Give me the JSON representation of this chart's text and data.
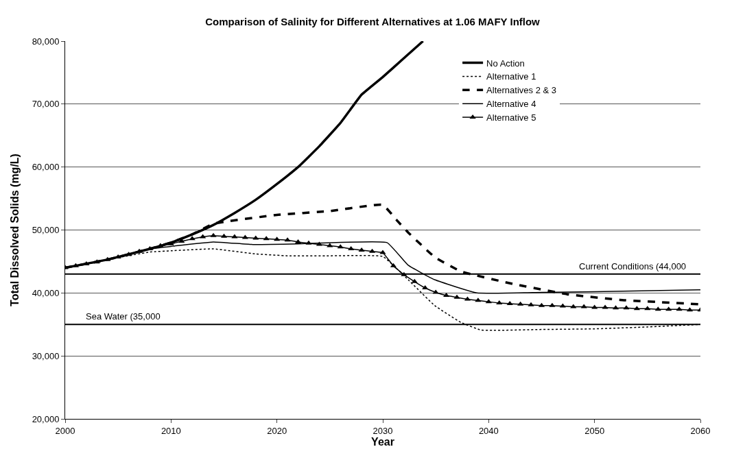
{
  "chart_data": {
    "type": "line",
    "title": "Comparison of Salinity for Different Alternatives at 1.06 MAFY Inflow",
    "xlabel": "Year",
    "ylabel": "Total Dissolved Solids (mg/L)",
    "xlim": [
      2000,
      2060
    ],
    "xticks": [
      2000,
      2010,
      2020,
      2030,
      2040,
      2050,
      2060
    ],
    "ylim": [
      20000,
      80000
    ],
    "yticks": [
      {
        "value": 20000,
        "label": "20,000"
      },
      {
        "value": 30000,
        "label": "30,000"
      },
      {
        "value": 40000,
        "label": "40,000"
      },
      {
        "value": 50000,
        "label": "50,000"
      },
      {
        "value": 60000,
        "label": "60,000"
      },
      {
        "value": 70000,
        "label": "70,000"
      },
      {
        "value": 80000,
        "label": "80,000"
      }
    ],
    "grid": "y",
    "legend": "top right",
    "series": [
      {
        "name": "No Action",
        "color": "#000000",
        "line_style": "solid",
        "marker": "none",
        "x": [
          2000,
          2004,
          2008,
          2010,
          2012,
          2014,
          2016,
          2018,
          2020,
          2022,
          2024,
          2026,
          2028,
          2030,
          2032,
          2033.8
        ],
        "values": [
          44000,
          45300,
          47000,
          48000,
          49300,
          50800,
          52700,
          54800,
          57300,
          60000,
          63300,
          67000,
          71500,
          74300,
          77300,
          80000
        ]
      },
      {
        "name": "Alternative 1",
        "color": "#000000",
        "line_style": "dotted",
        "marker": "none",
        "x": [
          2000,
          2004,
          2008,
          2010,
          2014,
          2018,
          2021,
          2025,
          2030,
          2032.4,
          2034.9,
          2037.4,
          2039.3,
          2045,
          2050,
          2055,
          2060
        ],
        "values": [
          44000,
          45300,
          46500,
          46700,
          47000,
          46200,
          45900,
          45900,
          45800,
          42100,
          38000,
          35300,
          34100,
          34200,
          34300,
          34600,
          35000
        ]
      },
      {
        "name": "Alternatives 2 & 3",
        "color": "#000000",
        "line_style": "dashed",
        "marker": "none",
        "x": [
          2000,
          2004,
          2008,
          2010,
          2012,
          2014,
          2020,
          2025,
          2030,
          2031.3,
          2032.4,
          2034.9,
          2037.4,
          2042.4,
          2047.4,
          2052.4,
          2060
        ],
        "values": [
          44000,
          45300,
          47000,
          48000,
          49300,
          51000,
          52400,
          53000,
          54000,
          51600,
          49600,
          45700,
          43400,
          41400,
          39800,
          38900,
          38200
        ]
      },
      {
        "name": "Alternative 4",
        "color": "#000000",
        "line_style": "solid",
        "marker": "none",
        "x": [
          2000,
          2004,
          2008,
          2010,
          2014,
          2017.6,
          2022,
          2030.4,
          2032.4,
          2034.9,
          2038.9,
          2045,
          2050,
          2060
        ],
        "values": [
          44000,
          45300,
          47000,
          47400,
          48100,
          47700,
          47800,
          48000,
          44400,
          42100,
          40000,
          40100,
          40200,
          40500
        ]
      },
      {
        "name": "Alternative 5",
        "color": "#000000",
        "line_style": "solid",
        "marker": "triangle",
        "x": [
          2000,
          2001,
          2002,
          2003,
          2004,
          2005,
          2006,
          2007,
          2008,
          2009,
          2010,
          2011,
          2012,
          2013,
          2014,
          2015,
          2016,
          2017,
          2018,
          2019,
          2020,
          2021,
          2022,
          2023,
          2024,
          2025,
          2026,
          2027,
          2028,
          2029,
          2030,
          2031,
          2032,
          2033,
          2034,
          2035,
          2036,
          2037,
          2038,
          2039,
          2040,
          2041,
          2042,
          2043,
          2044,
          2045,
          2046,
          2047,
          2048,
          2049,
          2050,
          2051,
          2052,
          2053,
          2054,
          2055,
          2056,
          2057,
          2058,
          2059,
          2060
        ],
        "values": [
          44000,
          44300,
          44600,
          44900,
          45300,
          45700,
          46100,
          46600,
          47000,
          47500,
          47800,
          48200,
          48600,
          48900,
          49100,
          49000,
          48900,
          48800,
          48700,
          48600,
          48500,
          48400,
          48100,
          47900,
          47700,
          47500,
          47300,
          47000,
          46800,
          46600,
          46400,
          44300,
          42900,
          41800,
          40800,
          40100,
          39600,
          39300,
          39000,
          38800,
          38600,
          38400,
          38300,
          38200,
          38100,
          38000,
          38000,
          37900,
          37800,
          37800,
          37700,
          37700,
          37600,
          37600,
          37500,
          37500,
          37400,
          37400,
          37400,
          37300,
          37300
        ]
      }
    ],
    "ref_lines": [
      {
        "axis": "y",
        "value": 43000,
        "label": "Current Conditions (44,000",
        "color": "#000000",
        "line_style": "solid"
      },
      {
        "axis": "y",
        "value": 35000,
        "label": "Sea Water (35,000",
        "color": "#000000",
        "line_style": "solid"
      }
    ]
  }
}
